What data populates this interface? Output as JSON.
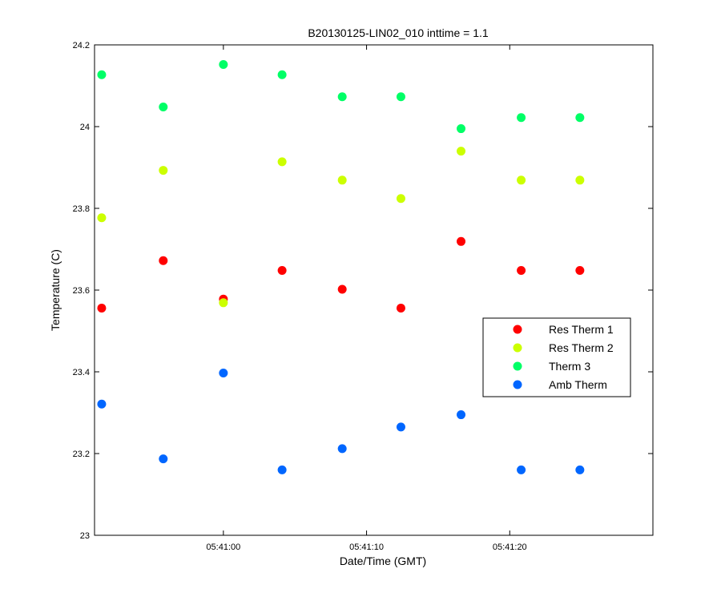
{
  "chart_data": {
    "type": "scatter",
    "title": "B20130125-LIN02_010 inttime = 1.1",
    "xlabel": "Date/Time (GMT)",
    "ylabel": "Temperature (C)",
    "x_unit": "time (HH:MM:SS)",
    "xlim": [
      "05:40:51",
      "05:41:30"
    ],
    "ylim": [
      23,
      24.2
    ],
    "x_ticks": [
      "05:41:00",
      "05:41:10",
      "05:41:20"
    ],
    "y_ticks": [
      "23",
      "23.2",
      "23.4",
      "23.6",
      "23.8",
      "24",
      "24.2"
    ],
    "grid": false,
    "legend_position": "right",
    "x": [
      "05:40:51.5",
      "05:40:55.8",
      "05:41:00.0",
      "05:41:04.1",
      "05:41:08.3",
      "05:41:12.4",
      "05:41:16.6",
      "05:41:20.8",
      "05:41:24.9"
    ],
    "series": [
      {
        "name": "Res Therm 1",
        "color": "#ff0000",
        "values": [
          23.556,
          23.672,
          23.578,
          23.648,
          23.602,
          23.556,
          23.719,
          23.648,
          23.648
        ]
      },
      {
        "name": "Res Therm 2",
        "color": "#ccff00",
        "values": [
          23.777,
          23.893,
          23.569,
          23.914,
          23.869,
          23.824,
          23.94,
          23.869,
          23.869
        ]
      },
      {
        "name": "Therm 3",
        "color": "#00ff66",
        "values": [
          24.127,
          24.048,
          24.152,
          24.127,
          24.073,
          24.073,
          23.995,
          24.022,
          24.022
        ]
      },
      {
        "name": "Amb Therm",
        "color": "#0066ff",
        "values": [
          23.321,
          23.187,
          23.397,
          23.16,
          23.212,
          23.265,
          23.295,
          23.16,
          23.16
        ]
      }
    ]
  }
}
